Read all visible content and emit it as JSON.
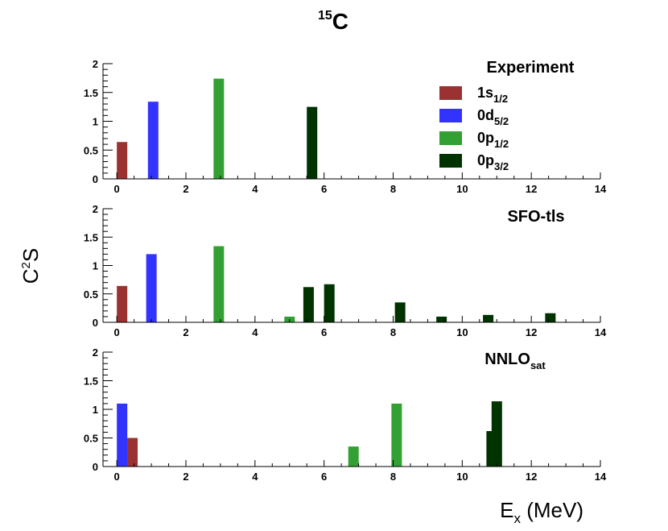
{
  "title": {
    "sup": "15",
    "text": "C"
  },
  "ylabel": {
    "base": "C",
    "sup": "2",
    "rest": "S"
  },
  "xlabel": {
    "base": "E",
    "sub": "x",
    "rest": " (MeV)"
  },
  "colors": {
    "1s1/2": "#9a3232",
    "0d5/2": "#3333ff",
    "0p1/2": "#32a032",
    "0p3/2": "#003300"
  },
  "legend": [
    {
      "key": "1s1/2",
      "base": "1s",
      "sub": "1/2"
    },
    {
      "key": "0d5/2",
      "base": "0d",
      "sub": "5/2"
    },
    {
      "key": "0p1/2",
      "base": "0p",
      "sub": "1/2"
    },
    {
      "key": "0p3/2",
      "base": "0p",
      "sub": "3/2"
    }
  ],
  "chart_data": [
    {
      "type": "bar",
      "panel": "Experiment",
      "label": {
        "base": "Experiment",
        "sub": ""
      },
      "xlim": [
        -0.4,
        14
      ],
      "ylim": [
        0,
        2
      ],
      "xticks": [
        "0",
        "2",
        "4",
        "6",
        "8",
        "10",
        "12",
        "14"
      ],
      "yticks": [
        "0",
        "0.5",
        "1",
        "1.5",
        "2"
      ],
      "bars": [
        {
          "x": 0.0,
          "y": 0.64,
          "state": "1s1/2"
        },
        {
          "x": 0.9,
          "y": 1.34,
          "state": "0d5/2"
        },
        {
          "x": 2.8,
          "y": 1.74,
          "state": "0p1/2"
        },
        {
          "x": 5.5,
          "y": 1.25,
          "state": "0p3/2"
        }
      ]
    },
    {
      "type": "bar",
      "panel": "SFO-tls",
      "label": {
        "base": "SFO-tls",
        "sub": ""
      },
      "xlim": [
        -0.4,
        14
      ],
      "ylim": [
        0,
        2
      ],
      "xticks": [
        "0",
        "2",
        "4",
        "6",
        "8",
        "10",
        "12",
        "14"
      ],
      "yticks": [
        "0",
        "0.5",
        "1",
        "1.5",
        "2"
      ],
      "bars": [
        {
          "x": 0.0,
          "y": 0.64,
          "state": "1s1/2"
        },
        {
          "x": 0.85,
          "y": 1.2,
          "state": "0d5/2"
        },
        {
          "x": 2.8,
          "y": 1.34,
          "state": "0p1/2"
        },
        {
          "x": 4.85,
          "y": 0.1,
          "state": "0p1/2"
        },
        {
          "x": 5.4,
          "y": 0.62,
          "state": "0p3/2"
        },
        {
          "x": 6.0,
          "y": 0.67,
          "state": "0p3/2"
        },
        {
          "x": 8.05,
          "y": 0.35,
          "state": "0p3/2"
        },
        {
          "x": 9.25,
          "y": 0.1,
          "state": "0p3/2"
        },
        {
          "x": 10.6,
          "y": 0.13,
          "state": "0p3/2"
        },
        {
          "x": 12.4,
          "y": 0.16,
          "state": "0p3/2"
        }
      ]
    },
    {
      "type": "bar",
      "panel": "NNLOsat",
      "label": {
        "base": "NNLO",
        "sub": "sat"
      },
      "xlim": [
        -0.4,
        14
      ],
      "ylim": [
        0,
        2
      ],
      "xticks": [
        "0",
        "2",
        "4",
        "6",
        "8",
        "10",
        "12",
        "14"
      ],
      "yticks": [
        "0",
        "0.5",
        "1",
        "1.5",
        "2"
      ],
      "bars": [
        {
          "x": 0.0,
          "y": 1.1,
          "state": "0d5/2"
        },
        {
          "x": 0.3,
          "y": 0.5,
          "state": "1s1/2"
        },
        {
          "x": 6.7,
          "y": 0.35,
          "state": "0p1/2"
        },
        {
          "x": 7.95,
          "y": 1.1,
          "state": "0p1/2"
        },
        {
          "x": 10.7,
          "y": 0.62,
          "state": "0p3/2"
        },
        {
          "x": 10.85,
          "y": 1.14,
          "state": "0p3/2"
        }
      ]
    }
  ]
}
